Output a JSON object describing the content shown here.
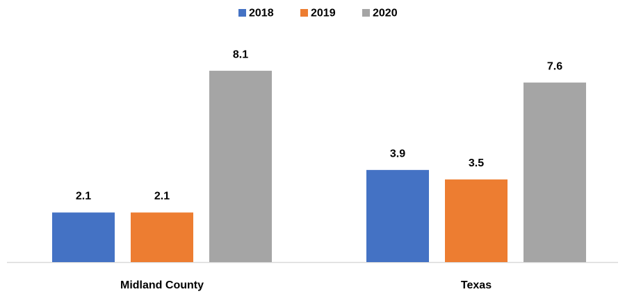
{
  "chart_data": {
    "type": "bar",
    "categories": [
      "Midland County",
      "Texas"
    ],
    "series": [
      {
        "name": "2018",
        "color": "#4472c4",
        "values": [
          2.1,
          3.9
        ]
      },
      {
        "name": "2019",
        "color": "#ed7d31",
        "values": [
          2.1,
          3.5
        ]
      },
      {
        "name": "2020",
        "color": "#a5a5a5",
        "values": [
          8.1,
          7.6
        ]
      }
    ]
  }
}
